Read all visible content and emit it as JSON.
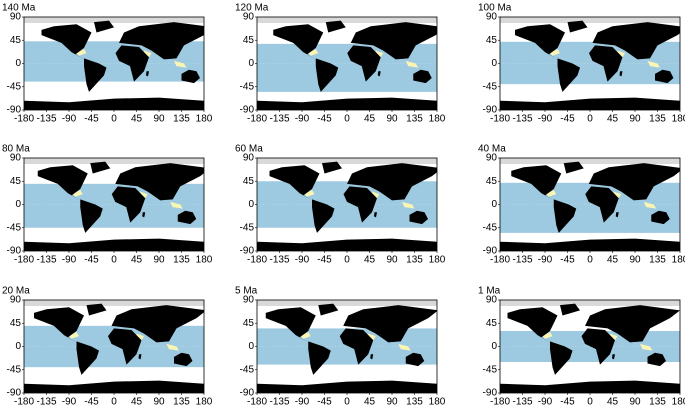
{
  "panels": [
    {
      "title": "140 Ma",
      "band": [
        43,
        -35
      ]
    },
    {
      "title": "120 Ma",
      "band": [
        38,
        -55
      ]
    },
    {
      "title": "100 Ma",
      "band": [
        42,
        -40
      ]
    },
    {
      "title": "80 Ma",
      "band": [
        40,
        -45
      ]
    },
    {
      "title": "60 Ma",
      "band": [
        45,
        -45
      ]
    },
    {
      "title": "40 Ma",
      "band": [
        42,
        -55
      ]
    },
    {
      "title": "20 Ma",
      "band": [
        40,
        -40
      ]
    },
    {
      "title": "5 Ma",
      "band": [
        35,
        -35
      ]
    },
    {
      "title": "1 Ma",
      "band": [
        30,
        -30
      ]
    }
  ],
  "xlim": [
    -180,
    180
  ],
  "ylim": [
    -90,
    90
  ],
  "xticks": [
    -180,
    -135,
    -90,
    -45,
    0,
    45,
    90,
    135,
    180
  ],
  "yticks": [
    -90,
    -45,
    0,
    45,
    90
  ]
}
